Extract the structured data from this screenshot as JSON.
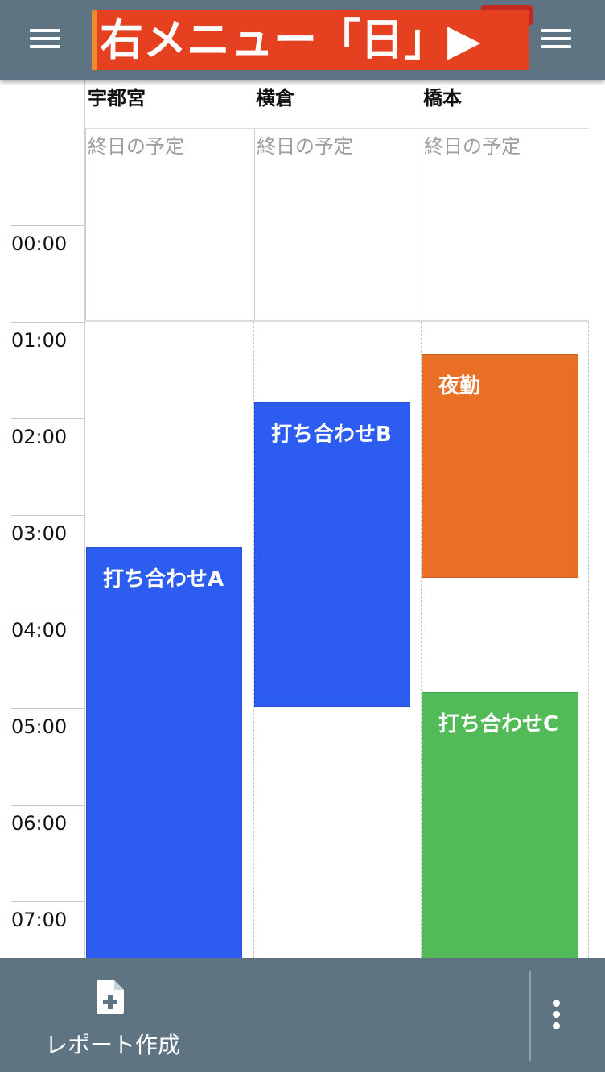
{
  "header": {
    "banner_text": "右メニュー「日」▶",
    "left_menu_icon": "hamburger-icon",
    "right_menu_icon": "hamburger-icon",
    "background": "#5f7482",
    "banner_color": "#e5401f"
  },
  "columns": [
    {
      "name": "宇都宮",
      "allday_placeholder": "終日の予定"
    },
    {
      "name": "横倉",
      "allday_placeholder": "終日の予定"
    },
    {
      "name": "橋本",
      "allday_placeholder": "終日の予定"
    }
  ],
  "times": [
    "00:00",
    "01:00",
    "02:00",
    "03:00",
    "04:00",
    "05:00",
    "06:00",
    "07:00"
  ],
  "events": [
    {
      "title": "打ち合わせA",
      "color": "#2c5cf0"
    },
    {
      "title": "打ち合わせB",
      "color": "#2c5cf0"
    },
    {
      "title": "夜勤",
      "color": "#e96f26"
    },
    {
      "title": "打ち合わせC",
      "color": "#52bb57"
    }
  ],
  "footer": {
    "report_label": "レポート作成",
    "report_icon": "file-add-icon",
    "more_icon": "more-vertical-icon"
  }
}
